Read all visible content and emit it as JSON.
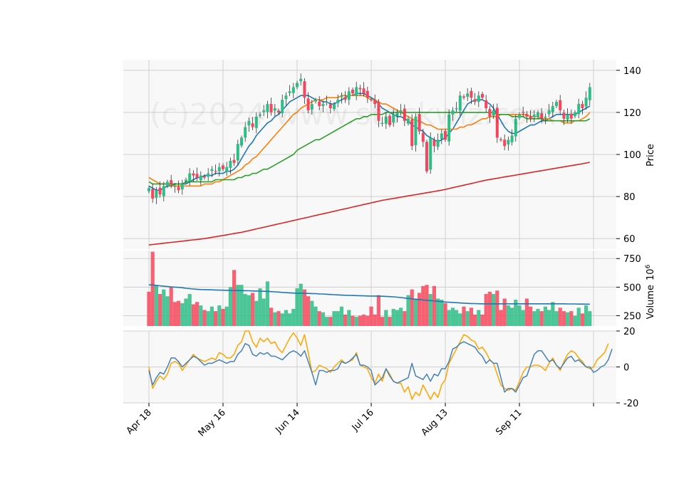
{
  "watermark": "(c)2024 www.stockwiz.com",
  "colors": {
    "panel_bg": "#f8f8f8",
    "grid": "#d0d0d0",
    "up": "#2ebd85",
    "down": "#f6465d",
    "ma_short": "#1f77b4",
    "ma_mid": "#ff7f0e",
    "ma_long": "#2ca02c",
    "ma_200": "#d62728",
    "vol_ma": "#1f77b4",
    "osc_fast": "#4682b4",
    "osc_slow": "#ffa500"
  },
  "chart_data": [
    {
      "type": "candlestick",
      "ylabel": "Price",
      "ylim": [
        55,
        145
      ],
      "y_ticks": [
        60,
        80,
        100,
        120,
        140
      ],
      "x_tick_labels": [
        "Apr 18",
        "May 16",
        "Jun 14",
        "Jul 16",
        "Aug 13",
        "Sep 11",
        ""
      ],
      "x_tick_index": [
        0,
        20,
        40,
        60,
        80,
        100,
        120
      ],
      "close": [
        84,
        79,
        83,
        81,
        85,
        87,
        86,
        85,
        83,
        86,
        88,
        91,
        90,
        89,
        90,
        89,
        91,
        93,
        92,
        94,
        93,
        94,
        97,
        96,
        105,
        108,
        113,
        116,
        113,
        118,
        119,
        121,
        124,
        120,
        122,
        120,
        126,
        128,
        130,
        132,
        134,
        136,
        127,
        121,
        124,
        126,
        123,
        124,
        125,
        122,
        124,
        126,
        128,
        126,
        130,
        129,
        132,
        131,
        129,
        127,
        126,
        124,
        116,
        115,
        118,
        114,
        119,
        120,
        121,
        116,
        117,
        104,
        118,
        111,
        106,
        92,
        108,
        104,
        107,
        110,
        107,
        119,
        121,
        122,
        128,
        127,
        129,
        127,
        125,
        128,
        127,
        122,
        118,
        121,
        108,
        107,
        104,
        107,
        109,
        117,
        119,
        120,
        118,
        117,
        119,
        120,
        117,
        118,
        121,
        123,
        125,
        121,
        117,
        119,
        117,
        120,
        124,
        122,
        127,
        132
      ],
      "series": [
        {
          "name": "",
          "values": [
            85,
            84,
            83,
            83,
            84,
            85,
            85,
            86,
            86,
            86,
            86,
            87,
            88,
            89,
            89,
            90,
            90,
            90,
            91,
            91,
            91,
            92,
            92,
            93,
            95,
            98,
            101,
            104,
            106,
            109,
            111,
            113,
            115,
            116,
            118,
            119,
            121,
            123,
            125,
            126,
            127,
            128,
            128,
            128,
            127,
            126,
            126,
            125,
            125,
            124,
            124,
            125,
            126,
            127,
            128,
            128,
            129,
            129,
            129,
            128,
            127,
            126,
            124,
            122,
            121,
            120,
            119,
            118,
            118,
            117,
            116,
            114,
            113,
            112,
            111,
            109,
            108,
            107,
            106,
            107,
            108,
            110,
            112,
            115,
            118,
            121,
            124,
            125,
            126,
            126,
            126,
            125,
            124,
            122,
            119,
            116,
            113,
            111,
            110,
            110,
            111,
            112,
            113,
            114,
            114,
            115,
            116,
            116,
            117,
            118,
            119,
            119,
            119,
            119,
            119,
            119,
            120,
            121,
            122,
            123
          ]
        },
        {
          "name": "",
          "values": [
            89,
            88,
            87,
            86,
            86,
            86,
            85,
            85,
            85,
            85,
            85,
            85,
            85,
            85,
            85,
            86,
            86,
            86,
            87,
            87,
            88,
            89,
            90,
            91,
            92,
            93,
            95,
            96,
            98,
            99,
            101,
            103,
            105,
            107,
            109,
            111,
            113,
            115,
            117,
            119,
            120,
            122,
            123,
            124,
            125,
            126,
            126,
            126,
            127,
            127,
            127,
            127,
            128,
            128,
            128,
            128,
            128,
            128,
            128,
            127,
            126,
            126,
            125,
            124,
            124,
            123,
            122,
            121,
            120,
            119,
            118,
            117,
            116,
            116,
            115,
            114,
            114,
            113,
            112,
            112,
            112,
            112,
            112,
            112,
            113,
            113,
            114,
            114,
            115,
            116,
            117,
            117,
            118,
            118,
            118,
            119,
            119,
            119,
            119,
            119,
            119,
            119,
            119,
            118,
            118,
            118,
            117,
            117,
            117,
            116,
            116,
            116,
            115,
            115,
            115,
            116,
            116,
            117,
            118,
            120
          ]
        },
        {
          "name": "",
          "values": [
            87,
            86,
            86,
            86,
            86,
            86,
            86,
            86,
            86,
            86,
            87,
            87,
            87,
            87,
            87,
            87,
            87,
            87,
            88,
            88,
            88,
            88,
            88,
            88,
            89,
            89,
            90,
            90,
            91,
            91,
            92,
            93,
            93,
            94,
            95,
            96,
            97,
            98,
            99,
            100,
            102,
            103,
            104,
            105,
            106,
            107,
            107,
            108,
            109,
            110,
            111,
            112,
            113,
            114,
            115,
            116,
            117,
            117,
            118,
            118,
            119,
            119,
            119,
            119,
            120,
            120,
            120,
            120,
            120,
            120,
            120,
            120,
            120,
            120,
            120,
            120,
            120,
            120,
            120,
            120,
            120,
            120,
            120,
            120,
            120,
            120,
            120,
            120,
            120,
            120,
            120,
            120,
            120,
            120,
            119,
            119,
            119,
            119,
            118,
            118,
            118,
            118,
            117,
            117,
            117,
            117,
            117,
            116,
            116,
            116,
            116,
            116,
            116,
            116,
            116,
            116,
            116,
            116,
            116,
            117
          ]
        },
        {
          "name": "",
          "values": [
            57,
            57.2,
            57.4,
            57.6,
            57.8,
            58,
            58.2,
            58.4,
            58.6,
            58.8,
            59,
            59.2,
            59.4,
            59.6,
            59.8,
            60,
            60.3,
            60.6,
            60.9,
            61.2,
            61.5,
            61.8,
            62.1,
            62.4,
            62.7,
            63,
            63.4,
            63.8,
            64.2,
            64.6,
            65,
            65.4,
            65.8,
            66.2,
            66.6,
            67,
            67.4,
            67.8,
            68.2,
            68.6,
            69,
            69.4,
            69.8,
            70.2,
            70.6,
            71,
            71.4,
            71.8,
            72.2,
            72.6,
            73,
            73.4,
            73.8,
            74.2,
            74.6,
            75,
            75.4,
            75.8,
            76.2,
            76.6,
            77,
            77.4,
            77.8,
            78.2,
            78.5,
            78.8,
            79.1,
            79.4,
            79.7,
            80,
            80.3,
            80.6,
            80.9,
            81.2,
            81.5,
            81.8,
            82.1,
            82.4,
            82.7,
            83,
            83.4,
            83.8,
            84.2,
            84.6,
            85,
            85.4,
            85.8,
            86.2,
            86.6,
            87,
            87.4,
            87.8,
            88.1,
            88.4,
            88.7,
            89,
            89.3,
            89.6,
            89.9,
            90.2,
            90.5,
            90.8,
            91.1,
            91.4,
            91.7,
            92,
            92.3,
            92.6,
            92.9,
            93.2,
            93.5,
            93.8,
            94.1,
            94.4,
            94.7,
            95,
            95.3,
            95.6,
            95.9,
            96.3
          ]
        }
      ]
    },
    {
      "type": "bar",
      "ylabel": "Volume",
      "ylabel_exponent": "10",
      "ylabel_exponent_power": "6",
      "ylim": [
        160,
        820
      ],
      "y_ticks": [
        250,
        500,
        750
      ],
      "values": [
        460,
        810,
        520,
        440,
        480,
        420,
        500,
        370,
        380,
        360,
        400,
        440,
        350,
        370,
        340,
        300,
        290,
        330,
        290,
        340,
        310,
        330,
        500,
        650,
        520,
        520,
        440,
        430,
        450,
        380,
        490,
        400,
        550,
        320,
        280,
        290,
        270,
        300,
        270,
        310,
        490,
        530,
        480,
        420,
        380,
        330,
        290,
        280,
        240,
        240,
        290,
        290,
        330,
        260,
        300,
        250,
        240,
        250,
        260,
        250,
        330,
        260,
        430,
        240,
        300,
        240,
        310,
        300,
        320,
        290,
        430,
        480,
        400,
        450,
        510,
        520,
        440,
        510,
        400,
        390,
        360,
        300,
        320,
        300,
        270,
        330,
        290,
        320,
        260,
        300,
        260,
        440,
        460,
        440,
        470,
        300,
        400,
        340,
        320,
        390,
        340,
        300,
        400,
        330,
        290,
        310,
        290,
        330,
        300,
        370,
        290,
        320,
        290,
        280,
        290,
        250,
        320,
        270,
        340,
        290
      ],
      "moving_average": [
        520,
        520,
        515,
        512,
        508,
        505,
        502,
        500,
        498,
        495,
        490,
        487,
        484,
        481,
        479,
        478,
        477,
        476,
        475,
        474,
        473,
        472,
        471,
        470,
        470,
        470,
        469,
        468,
        467,
        466,
        465,
        464,
        463,
        461,
        459,
        457,
        454,
        452,
        450,
        448,
        447,
        447,
        446,
        445,
        444,
        443,
        441,
        440,
        438,
        436,
        434,
        432,
        430,
        429,
        428,
        427,
        426,
        425,
        424,
        423,
        422,
        422,
        421,
        420,
        419,
        417,
        415,
        412,
        409,
        405,
        401,
        398,
        394,
        391,
        388,
        385,
        382,
        379,
        376,
        373,
        370,
        368,
        366,
        364,
        362,
        360,
        358,
        357,
        356,
        355,
        354,
        354,
        354,
        354,
        354,
        354,
        354,
        354,
        354,
        354,
        354,
        354,
        354,
        354,
        354,
        354,
        354,
        354,
        354,
        354,
        354,
        354,
        354,
        353,
        353,
        353,
        352,
        352,
        351,
        351
      ]
    },
    {
      "type": "line",
      "ylim": [
        -20,
        20
      ],
      "y_ticks": [
        -20,
        0,
        20
      ],
      "series": [
        {
          "name": "",
          "values": [
            -2,
            -10,
            -6,
            -3,
            -4,
            0,
            5,
            5,
            3,
            0,
            2,
            4,
            6,
            5,
            3,
            1,
            2,
            2,
            3,
            4,
            3,
            2,
            3,
            3,
            7,
            9,
            13,
            12,
            7,
            6,
            8,
            7,
            8,
            6,
            6,
            5,
            4,
            6,
            8,
            9,
            8,
            6,
            9,
            3,
            -3,
            -10,
            -2,
            -2,
            -3,
            -2,
            -2,
            -1,
            3,
            2,
            3,
            5,
            7,
            1,
            1,
            0,
            -2,
            -10,
            -8,
            -6,
            -1,
            -5,
            -8,
            -9,
            -8,
            -7,
            -6,
            2,
            -5,
            -6,
            -7,
            -4,
            -8,
            -4,
            -5,
            -1,
            -1,
            3,
            10,
            11,
            13,
            14,
            13,
            12,
            11,
            8,
            6,
            2,
            4,
            2,
            2,
            -6,
            -14,
            -12,
            -12,
            -14,
            -10,
            -6,
            -5,
            1,
            7,
            9,
            9,
            6,
            3,
            4,
            1,
            -1,
            2,
            5,
            6,
            3,
            4,
            2,
            0,
            0,
            -3,
            -2,
            0,
            1,
            4,
            10
          ]
        },
        {
          "name": "",
          "values": [
            0,
            -12,
            -8,
            -5,
            -7,
            -4,
            2,
            3,
            2,
            -2,
            1,
            4,
            7,
            5,
            4,
            3,
            4,
            5,
            4,
            8,
            7,
            5,
            5,
            7,
            12,
            14,
            20,
            20,
            14,
            11,
            16,
            14,
            16,
            13,
            14,
            10,
            8,
            12,
            16,
            19,
            16,
            12,
            18,
            8,
            -3,
            -2,
            1,
            0,
            -1,
            -3,
            0,
            2,
            4,
            2,
            3,
            4,
            8,
            1,
            0,
            -1,
            -6,
            -9,
            -4,
            -8,
            -1,
            -4,
            -8,
            -9,
            -9,
            -14,
            -11,
            -18,
            -14,
            -16,
            -10,
            -14,
            -18,
            -14,
            -17,
            -10,
            -7,
            2,
            6,
            10,
            14,
            18,
            17,
            15,
            14,
            10,
            11,
            8,
            4,
            2,
            -4,
            -10,
            -12,
            -13,
            -12,
            -13,
            -8,
            -3,
            0,
            0,
            1,
            1,
            0,
            -2,
            2,
            5,
            1,
            -2,
            3,
            7,
            9,
            8,
            5,
            3,
            0,
            -1,
            0,
            4,
            6,
            8,
            13
          ]
        }
      ]
    }
  ]
}
